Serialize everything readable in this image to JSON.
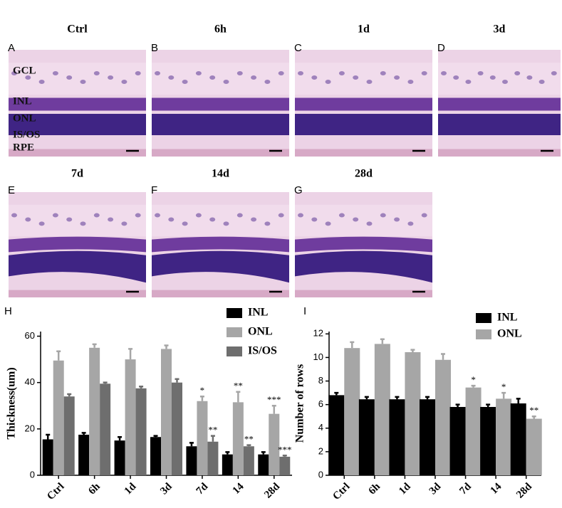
{
  "panels": [
    {
      "letter": "A",
      "title": "Ctrl"
    },
    {
      "letter": "B",
      "title": "6h"
    },
    {
      "letter": "C",
      "title": "1d"
    },
    {
      "letter": "D",
      "title": "3d"
    },
    {
      "letter": "E",
      "title": "7d"
    },
    {
      "letter": "F",
      "title": "14d"
    },
    {
      "letter": "G",
      "title": "28d"
    }
  ],
  "layer_labels": [
    "GCL",
    "INL",
    "ONL",
    "IS/OS",
    "RPE"
  ],
  "chart_data": [
    {
      "type": "bar",
      "panel_label": "H",
      "y_label": "Thickness(um)",
      "categories": [
        "Ctrl",
        "6h",
        "1d",
        "3d",
        "7d",
        "14",
        "28d"
      ],
      "series": [
        {
          "name": "INL",
          "color": "#000000",
          "values": [
            15.5,
            17.5,
            15,
            16.5,
            12.5,
            9,
            9
          ],
          "errors": [
            2,
            0.8,
            1.5,
            0.5,
            1.5,
            1,
            1
          ],
          "annotations": [
            null,
            null,
            null,
            null,
            null,
            null,
            null
          ]
        },
        {
          "name": "ONL",
          "color": "#a6a6a6",
          "values": [
            49.5,
            55,
            50,
            54.5,
            32,
            31.5,
            26.5
          ],
          "errors": [
            4,
            1.5,
            4.5,
            1.5,
            2,
            4.5,
            3.5
          ],
          "annotations": [
            null,
            null,
            null,
            null,
            "*",
            "**",
            "***"
          ]
        },
        {
          "name": "IS/OS",
          "color": "#6e6e6e",
          "values": [
            34,
            39.5,
            37.5,
            40,
            14.5,
            12.5,
            8
          ],
          "errors": [
            1,
            0.5,
            0.8,
            1.5,
            2.5,
            0.5,
            0.5
          ],
          "annotations": [
            null,
            null,
            null,
            null,
            "**",
            "**",
            "***"
          ]
        }
      ],
      "ylim": [
        0,
        62
      ],
      "yticks": [
        0,
        20,
        40,
        60
      ]
    },
    {
      "type": "bar",
      "panel_label": "I",
      "y_label": "Number of rows",
      "categories": [
        "Ctrl",
        "6h",
        "1d",
        "3d",
        "7d",
        "14",
        "28d"
      ],
      "series": [
        {
          "name": "INL",
          "color": "#000000",
          "values": [
            6.8,
            6.45,
            6.45,
            6.45,
            5.8,
            5.8,
            6.1
          ],
          "errors": [
            0.2,
            0.2,
            0.2,
            0.2,
            0.2,
            0.2,
            0.4
          ],
          "annotations": [
            null,
            null,
            null,
            null,
            null,
            null,
            null
          ]
        },
        {
          "name": "ONL",
          "color": "#a6a6a6",
          "values": [
            10.8,
            11.15,
            10.45,
            9.8,
            7.45,
            6.5,
            4.8
          ],
          "errors": [
            0.5,
            0.4,
            0.2,
            0.5,
            0.15,
            0.5,
            0.2
          ],
          "annotations": [
            null,
            null,
            null,
            null,
            "*",
            "*",
            "**"
          ]
        }
      ],
      "ylim": [
        0,
        12.2
      ],
      "yticks": [
        0,
        2,
        4,
        6,
        8,
        10,
        12
      ]
    }
  ]
}
